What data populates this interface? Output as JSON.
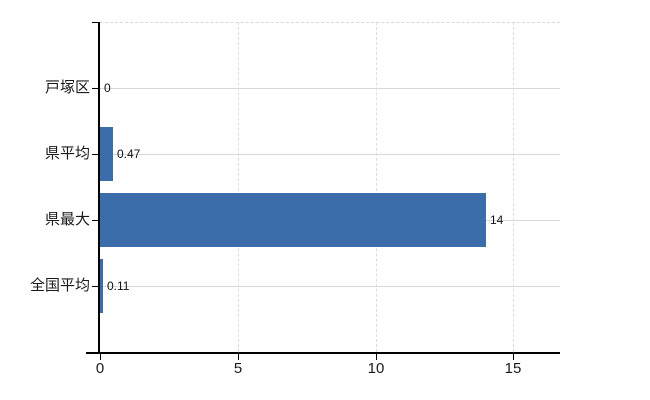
{
  "chart_data": {
    "type": "bar",
    "orientation": "horizontal",
    "title": "",
    "categories": [
      "戸塚区",
      "県平均",
      "県最大",
      "全国平均"
    ],
    "values": [
      0,
      0.47,
      14,
      0.11
    ],
    "value_labels": [
      "0",
      "0.47",
      "14",
      "0.11"
    ],
    "x_ticks": [
      0,
      5,
      10,
      15
    ],
    "x_tick_labels": [
      "0",
      "5",
      "10",
      "15"
    ],
    "xlim": [
      0,
      16.69
    ],
    "grid": true,
    "legend_position": "none",
    "colors": {
      "bar": "#3c6dab",
      "axis": "#000000",
      "grid_horizontal": "#d5dcd5",
      "grid_vertical": "#dcdcdc",
      "plot_top_border": "#d9d9d9",
      "text": "#1a1a1a",
      "background": "#ffffff"
    }
  }
}
